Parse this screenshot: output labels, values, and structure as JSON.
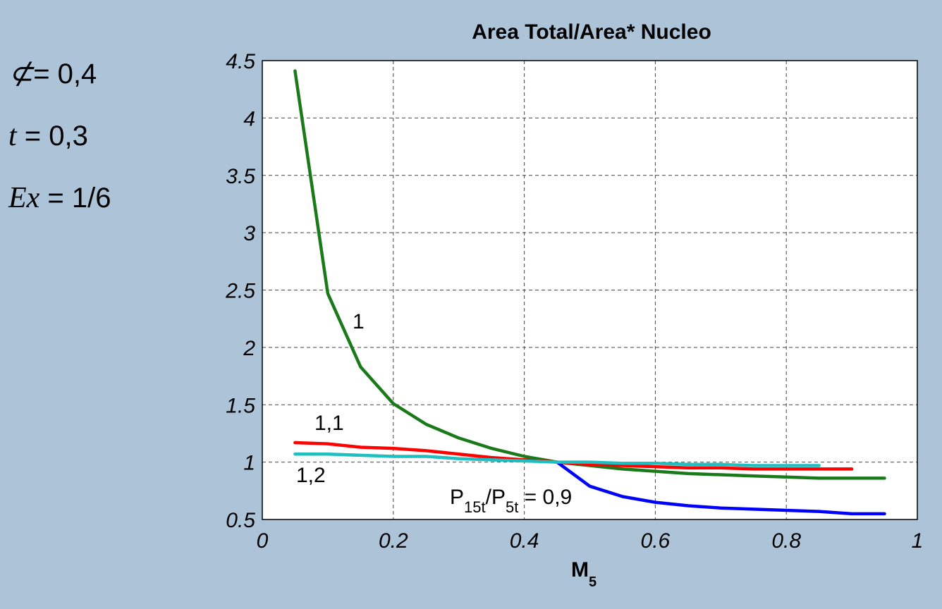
{
  "params": [
    {
      "symbol": "⊄",
      "text": "= 0,4"
    },
    {
      "symbol": "t",
      "text": " = 0,3"
    },
    {
      "symbol": "Ex",
      "text": " = 1/6"
    }
  ],
  "annotations": {
    "curve_labels": [
      "1",
      "1,1",
      "1,2"
    ],
    "ratio": {
      "p1": "P",
      "sub1": "15t",
      "slash": "/P",
      "sub2": "5t",
      "rest": " = 0,9"
    }
  },
  "chart_data": {
    "type": "line",
    "title": "Area Total/Area* Nucleo",
    "xlabel": {
      "main": "M",
      "sub": "5"
    },
    "ylabel": "",
    "xlim": [
      0,
      1
    ],
    "ylim": [
      0.5,
      4.5
    ],
    "xticks": [
      0,
      0.2,
      0.4,
      0.6,
      0.8,
      1
    ],
    "xtick_labels": [
      "0",
      "0.2",
      "0.4",
      "0.6",
      "0.8",
      "1"
    ],
    "yticks": [
      0.5,
      1,
      1.5,
      2,
      2.5,
      3,
      3.5,
      4,
      4.5
    ],
    "ytick_labels": [
      "0.5",
      "1",
      "1.5",
      "2",
      "2.5",
      "3",
      "3.5",
      "4",
      "4.5"
    ],
    "grid": true,
    "series": [
      {
        "color": "#1a7a1a",
        "x": [
          0.05,
          0.1,
          0.15,
          0.2,
          0.25,
          0.3,
          0.35,
          0.4,
          0.45,
          0.5,
          0.55,
          0.6,
          0.65,
          0.7,
          0.75,
          0.8,
          0.85,
          0.9,
          0.95
        ],
        "y": [
          4.41,
          2.47,
          1.83,
          1.51,
          1.33,
          1.21,
          1.12,
          1.05,
          1.0,
          0.97,
          0.94,
          0.92,
          0.9,
          0.89,
          0.88,
          0.87,
          0.86,
          0.86,
          0.86
        ]
      },
      {
        "color": "#ff0000",
        "x": [
          0.05,
          0.1,
          0.15,
          0.2,
          0.25,
          0.3,
          0.35,
          0.4,
          0.45,
          0.5,
          0.55,
          0.6,
          0.65,
          0.7,
          0.75,
          0.8,
          0.85,
          0.9
        ],
        "y": [
          1.17,
          1.16,
          1.13,
          1.12,
          1.1,
          1.07,
          1.04,
          1.02,
          1.0,
          0.98,
          0.97,
          0.96,
          0.95,
          0.95,
          0.94,
          0.94,
          0.94,
          0.94
        ]
      },
      {
        "color": "#0000ff",
        "x": [
          0.45,
          0.5,
          0.55,
          0.6,
          0.65,
          0.7,
          0.75,
          0.8,
          0.85,
          0.9,
          0.95
        ],
        "y": [
          1.0,
          0.79,
          0.7,
          0.65,
          0.62,
          0.6,
          0.59,
          0.58,
          0.57,
          0.55,
          0.55
        ]
      },
      {
        "color": "#1fbfc0",
        "x": [
          0.05,
          0.1,
          0.15,
          0.2,
          0.25,
          0.3,
          0.35,
          0.4,
          0.45,
          0.5,
          0.55,
          0.6,
          0.65,
          0.7,
          0.75,
          0.8,
          0.85
        ],
        "y": [
          1.07,
          1.07,
          1.06,
          1.05,
          1.05,
          1.03,
          1.02,
          1.01,
          1.0,
          1.0,
          0.99,
          0.99,
          0.98,
          0.98,
          0.97,
          0.97,
          0.97
        ]
      }
    ]
  }
}
